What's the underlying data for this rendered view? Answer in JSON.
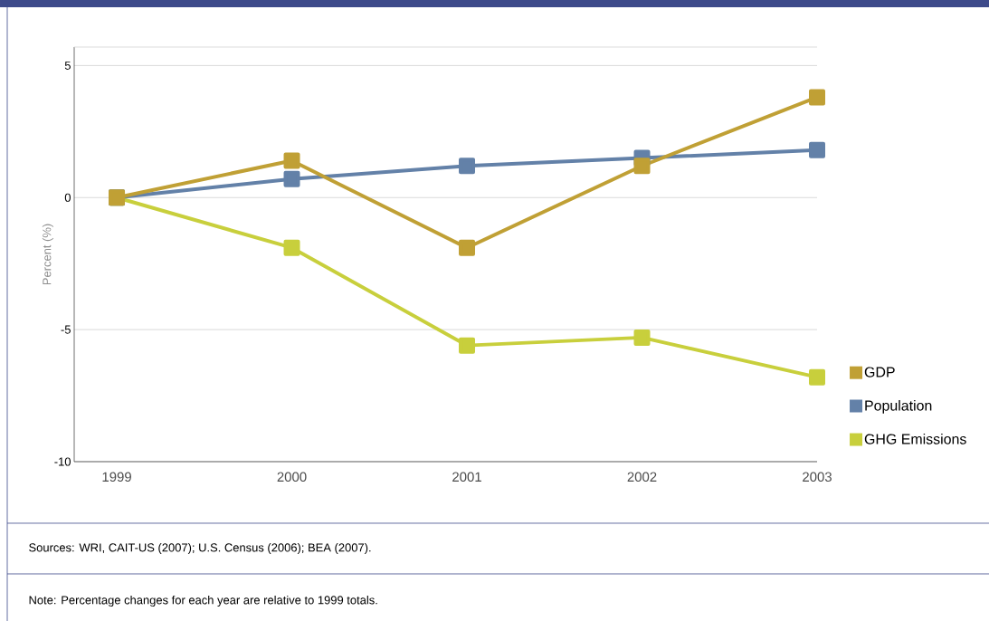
{
  "chart_data": {
    "type": "line",
    "ylabel": "Percent (%)",
    "categories": [
      "1999",
      "2000",
      "2001",
      "2002",
      "2003"
    ],
    "series": [
      {
        "name": "GDP",
        "color": "#c0a035",
        "values": [
          0,
          1.4,
          -1.9,
          1.2,
          3.8
        ]
      },
      {
        "name": "Population",
        "color": "#6381a8",
        "values": [
          0,
          0.7,
          1.2,
          1.5,
          1.8
        ]
      },
      {
        "name": "GHG Emissions",
        "color": "#c8cf3c",
        "values": [
          0,
          -1.9,
          -5.6,
          -5.3,
          -6.8
        ]
      }
    ],
    "ylim": [
      -10,
      5.7
    ],
    "yticks": [
      -10,
      -5,
      0,
      5
    ],
    "grid": "y",
    "legend": "right",
    "marker": "square",
    "line_style": "solid",
    "annotations": [
      "Sources: WRI, CAIT-US (2007); U.S. Census (2006); BEA (2007).",
      "Note: Percentage changes for each year are relative to 1999 totals."
    ]
  }
}
